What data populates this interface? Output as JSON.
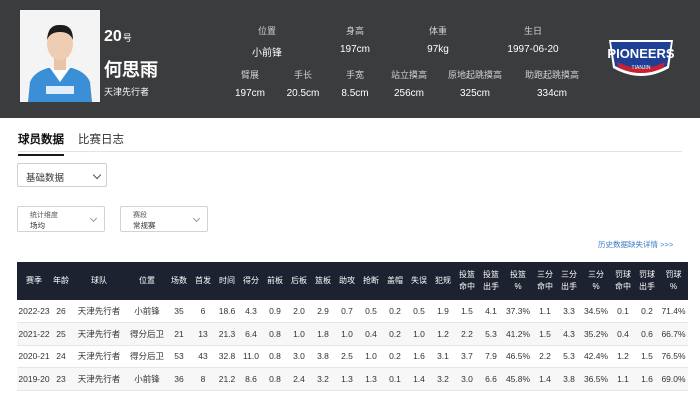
{
  "player": {
    "number": "20",
    "number_suffix": "号",
    "name": "何思雨",
    "team": "天津先行者"
  },
  "stats_row1": [
    {
      "label": "位置",
      "value": "小前锋"
    },
    {
      "label": "身高",
      "value": "197cm"
    },
    {
      "label": "体重",
      "value": "97kg"
    },
    {
      "label": "生日",
      "value": "1997-06-20"
    }
  ],
  "stats_row2": [
    {
      "label": "臂展",
      "value": "197cm"
    },
    {
      "label": "手长",
      "value": "20.5cm"
    },
    {
      "label": "手宽",
      "value": "8.5cm"
    },
    {
      "label": "站立摸高",
      "value": "256cm"
    },
    {
      "label": "原地起跳摸高",
      "value": "325cm"
    },
    {
      "label": "助跑起跳摸高",
      "value": "334cm"
    }
  ],
  "logo": {
    "main": "PIONEERS",
    "sub": "TIANJIN",
    "color": "#1f3f96",
    "accent": "#c8202e"
  },
  "tabs": [
    "球员数据",
    "比赛日志"
  ],
  "data_type_select": {
    "value": "基础数据"
  },
  "filters": [
    {
      "label": "统计维度",
      "value": "场均"
    },
    {
      "label": "赛段",
      "value": "常规赛"
    }
  ],
  "history_link": "历史数据缺失详情 >>>",
  "table": {
    "headers": [
      "赛季",
      "年龄",
      "球队",
      "位置",
      "场数",
      "首发",
      "时间",
      "得分",
      "前板",
      "后板",
      "篮板",
      "助攻",
      "抢断",
      "盖帽",
      "失误",
      "犯规",
      "投篮命中",
      "投篮出手",
      "投篮%",
      "三分命中",
      "三分出手",
      "三分%",
      "罚球命中",
      "罚球出手",
      "罚球%"
    ],
    "rows": [
      [
        "2022-23",
        "26",
        "天津先行者",
        "小前锋",
        "35",
        "6",
        "18.6",
        "4.3",
        "0.9",
        "2.0",
        "2.9",
        "0.7",
        "0.5",
        "0.2",
        "0.5",
        "1.9",
        "1.5",
        "4.1",
        "37.3%",
        "1.1",
        "3.3",
        "34.5%",
        "0.1",
        "0.2",
        "71.4%"
      ],
      [
        "2021-22",
        "25",
        "天津先行者",
        "得分后卫",
        "21",
        "13",
        "21.3",
        "6.4",
        "0.8",
        "1.0",
        "1.8",
        "1.0",
        "0.4",
        "0.2",
        "1.0",
        "1.2",
        "2.2",
        "5.3",
        "41.2%",
        "1.5",
        "4.3",
        "35.2%",
        "0.4",
        "0.6",
        "66.7%"
      ],
      [
        "2020-21",
        "24",
        "天津先行者",
        "得分后卫",
        "53",
        "43",
        "32.8",
        "11.0",
        "0.8",
        "3.0",
        "3.8",
        "2.5",
        "1.0",
        "0.2",
        "1.6",
        "3.1",
        "3.7",
        "7.9",
        "46.5%",
        "2.2",
        "5.3",
        "42.4%",
        "1.2",
        "1.5",
        "76.5%"
      ],
      [
        "2019-20",
        "23",
        "天津先行者",
        "小前锋",
        "36",
        "8",
        "21.2",
        "8.6",
        "0.8",
        "2.4",
        "3.2",
        "1.3",
        "1.3",
        "0.1",
        "1.4",
        "3.2",
        "3.0",
        "6.6",
        "45.8%",
        "1.4",
        "3.8",
        "36.5%",
        "1.1",
        "1.6",
        "69.0%"
      ]
    ]
  }
}
